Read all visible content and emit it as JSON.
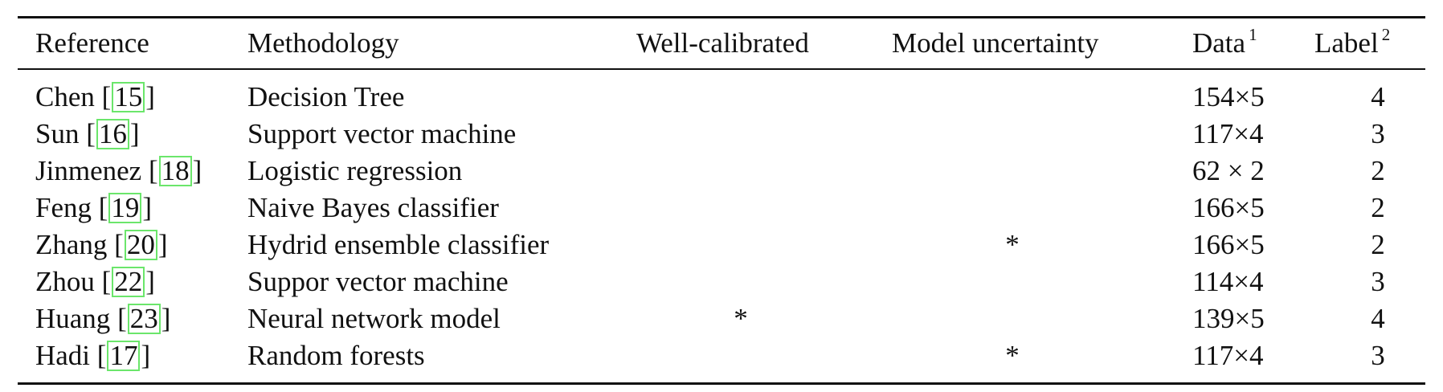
{
  "table": {
    "headers": {
      "reference": "Reference",
      "methodology": "Methodology",
      "well_calibrated": "Well-calibrated",
      "model_uncertainty": "Model uncertainty",
      "data": "Data",
      "data_note": "1",
      "label": "Label",
      "label_note": "2"
    },
    "rows": [
      {
        "author": "Chen",
        "cite": "15",
        "method": "Decision Tree",
        "wc": "",
        "mu": "",
        "data": "154×5",
        "label": "4"
      },
      {
        "author": "Sun",
        "cite": "16",
        "method": "Support vector machine",
        "wc": "",
        "mu": "",
        "data": "117×4",
        "label": "3"
      },
      {
        "author": "Jinmenez",
        "cite": "18",
        "method": "Logistic regression",
        "wc": "",
        "mu": "",
        "data": "62 × 2",
        "label": "2"
      },
      {
        "author": "Feng",
        "cite": "19",
        "method": "Naive Bayes classifier",
        "wc": "",
        "mu": "",
        "data": "166×5",
        "label": "2"
      },
      {
        "author": "Zhang",
        "cite": "20",
        "method": "Hydrid ensemble classifier",
        "wc": "",
        "mu": "*",
        "data": "166×5",
        "label": "2"
      },
      {
        "author": "Zhou",
        "cite": "22",
        "method": "Suppor vector machine",
        "wc": "",
        "mu": "",
        "data": "114×4",
        "label": "3"
      },
      {
        "author": "Huang",
        "cite": "23",
        "method": "Neural network model",
        "wc": "*",
        "mu": "",
        "data": "139×5",
        "label": "4"
      },
      {
        "author": "Hadi",
        "cite": "17",
        "method": "Random forests",
        "wc": "",
        "mu": "*",
        "data": "117×4",
        "label": "3"
      }
    ]
  }
}
